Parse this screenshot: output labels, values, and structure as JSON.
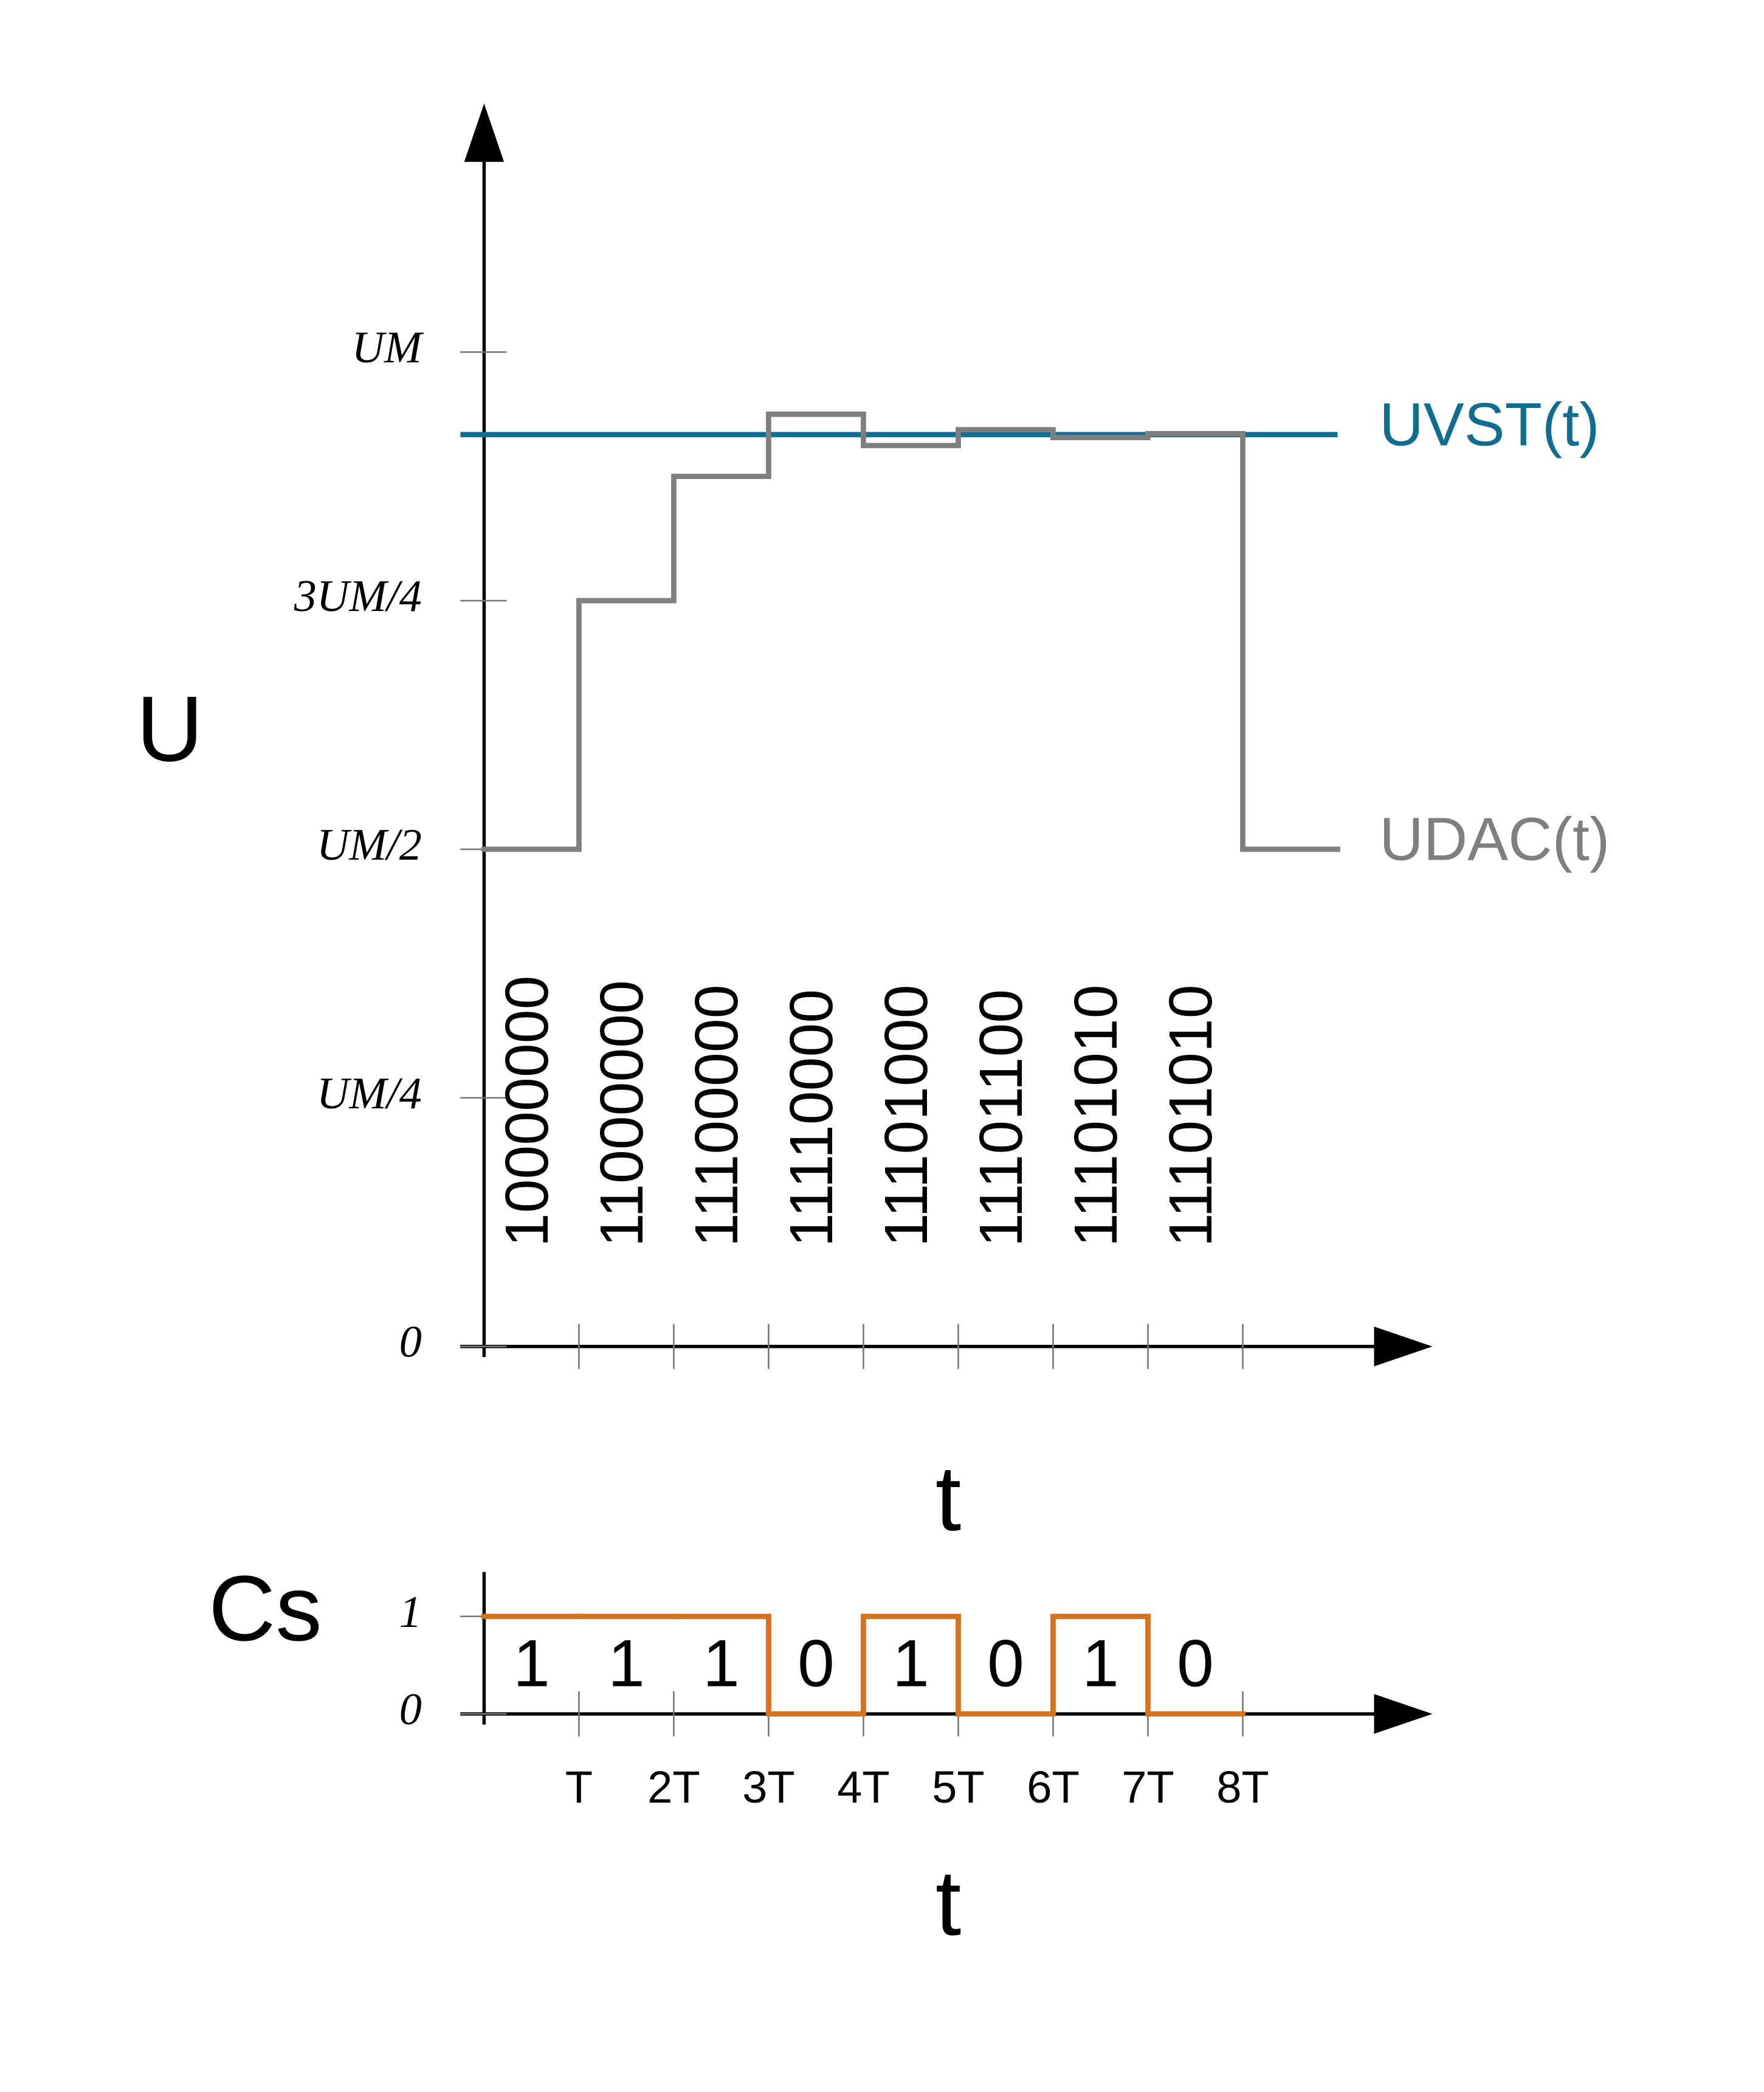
{
  "chart_data": [
    {
      "type": "step",
      "y_label": "U",
      "x_label": "t",
      "xlim": [
        0,
        10
      ],
      "ylim": [
        0,
        1.25
      ],
      "xticks": [
        1,
        2,
        3,
        4,
        5,
        6,
        7,
        8
      ],
      "yticks": [
        0,
        {
          "value": 0.25,
          "label": "UM/4"
        },
        {
          "value": 0.5,
          "label": "UM/2"
        },
        {
          "value": 0.75,
          "label": "3UM/4"
        },
        {
          "value": 1,
          "label": "UM"
        }
      ],
      "series": [
        {
          "name": "UVST(t)",
          "color": "#0e6d91",
          "x": [
            -0.25,
            9
          ],
          "values": [
            0.917,
            0.917
          ],
          "style": "line"
        },
        {
          "name": "UDAC(t)",
          "color": "#7f7f80",
          "x": [
            0,
            1,
            2,
            3,
            4,
            5,
            6,
            7,
            8
          ],
          "values": [
            0.5,
            0.75,
            0.875,
            0.9375,
            0.906,
            0.922,
            0.914,
            0.918,
            0.5
          ],
          "style": "step"
        }
      ],
      "annotations": [
        "10000000",
        "11000000",
        "11100000",
        "11110000",
        "11101000",
        "11101100",
        "11101010",
        "11101010"
      ]
    },
    {
      "type": "step",
      "y_label": "Cs",
      "x_label": "t",
      "xlim": [
        0,
        10
      ],
      "ylim": [
        0,
        2
      ],
      "xticks": [
        {
          "value": 1,
          "label": "T"
        },
        {
          "value": 2,
          "label": "2T"
        },
        {
          "value": 3,
          "label": "3T"
        },
        {
          "value": 4,
          "label": "4T"
        },
        {
          "value": 5,
          "label": "5T"
        },
        {
          "value": 6,
          "label": "6T"
        },
        {
          "value": 7,
          "label": "7T"
        },
        {
          "value": 8,
          "label": "8T"
        }
      ],
      "yticks": [
        0,
        1
      ],
      "series": [
        {
          "name": null,
          "color": "#d6721c",
          "x": [
            0,
            1,
            2,
            3,
            4,
            5,
            6,
            7
          ],
          "values": [
            1,
            1,
            1,
            0,
            1,
            0,
            1,
            0
          ],
          "style": "step",
          "data_labels": true
        }
      ]
    }
  ]
}
